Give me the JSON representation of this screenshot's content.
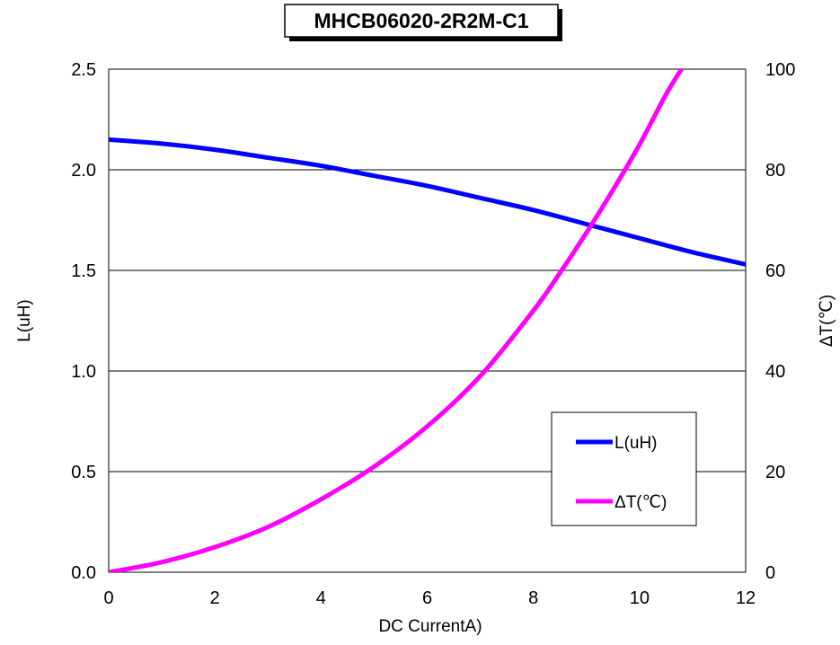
{
  "chart_data": {
    "type": "line",
    "title": "MHCB06020-2R2M-C1",
    "xlabel": "DC CurrentA)",
    "ylabel": "L(uH)",
    "ylabel_right": "ΔT(℃)",
    "xlim": [
      0,
      12
    ],
    "ylim": [
      0,
      2.5
    ],
    "ylim_right": [
      0,
      100
    ],
    "x_ticks": [
      "0",
      "2",
      "4",
      "6",
      "8",
      "10",
      "12"
    ],
    "y_ticks": [
      "0.0",
      "0.5",
      "1.0",
      "1.5",
      "2.0",
      "2.5"
    ],
    "y_ticks_right": [
      "0",
      "20",
      "40",
      "60",
      "80",
      "100"
    ],
    "grid": "horizontal",
    "legend_position": "lower-right",
    "series": [
      {
        "name": "L(uH)",
        "axis": "left",
        "color": "#0000ff",
        "x": [
          0,
          1,
          2,
          3,
          4,
          5,
          6,
          7,
          8,
          9,
          10,
          11,
          12
        ],
        "y": [
          2.15,
          2.13,
          2.1,
          2.06,
          2.02,
          1.97,
          1.92,
          1.86,
          1.8,
          1.73,
          1.66,
          1.59,
          1.53
        ]
      },
      {
        "name": "ΔT(℃)",
        "axis": "right",
        "color": "#ff00ff",
        "x": [
          0,
          1,
          2,
          3,
          4,
          5,
          6,
          7,
          8,
          8.5,
          9,
          9.5,
          10,
          10.5,
          10.85
        ],
        "y": [
          0,
          2,
          5,
          9,
          14.5,
          21,
          29,
          39,
          52,
          59.5,
          67.5,
          76,
          85,
          95,
          101
        ]
      }
    ]
  }
}
